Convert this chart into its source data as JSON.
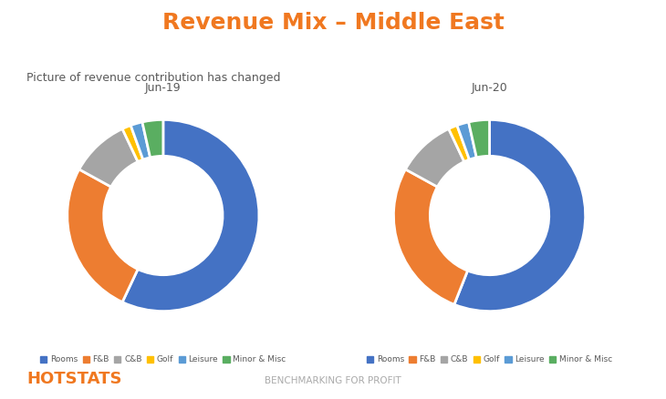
{
  "title": "Revenue Mix – Middle East",
  "subtitle": "Picture of revenue contribution has changed",
  "title_color": "#F07820",
  "subtitle_color": "#595959",
  "footer_left": "HOTSTATS",
  "footer_left_color": "#F07820",
  "footer_center": "BENCHMARKING FOR PROFIT",
  "footer_center_color": "#AAAAAA",
  "charts": [
    {
      "label": "Jun-19",
      "values": [
        57,
        26,
        10,
        1.5,
        2,
        3.5
      ],
      "colors": [
        "#4472C4",
        "#ED7D31",
        "#A5A5A5",
        "#FFC000",
        "#5B9BD5",
        "#5AAE61"
      ]
    },
    {
      "label": "Jun-20",
      "values": [
        56,
        27,
        10,
        1.5,
        2,
        3.5
      ],
      "colors": [
        "#4472C4",
        "#ED7D31",
        "#A5A5A5",
        "#FFC000",
        "#5B9BD5",
        "#5AAE61"
      ]
    }
  ],
  "legend_labels": [
    "Rooms",
    "F&B",
    "C&B",
    "Golf",
    "Leisure",
    "Minor & Misc"
  ],
  "legend_colors": [
    "#4472C4",
    "#ED7D31",
    "#A5A5A5",
    "#FFC000",
    "#5B9BD5",
    "#5AAE61"
  ],
  "background_color": "#ffffff",
  "donut_width": 0.38
}
